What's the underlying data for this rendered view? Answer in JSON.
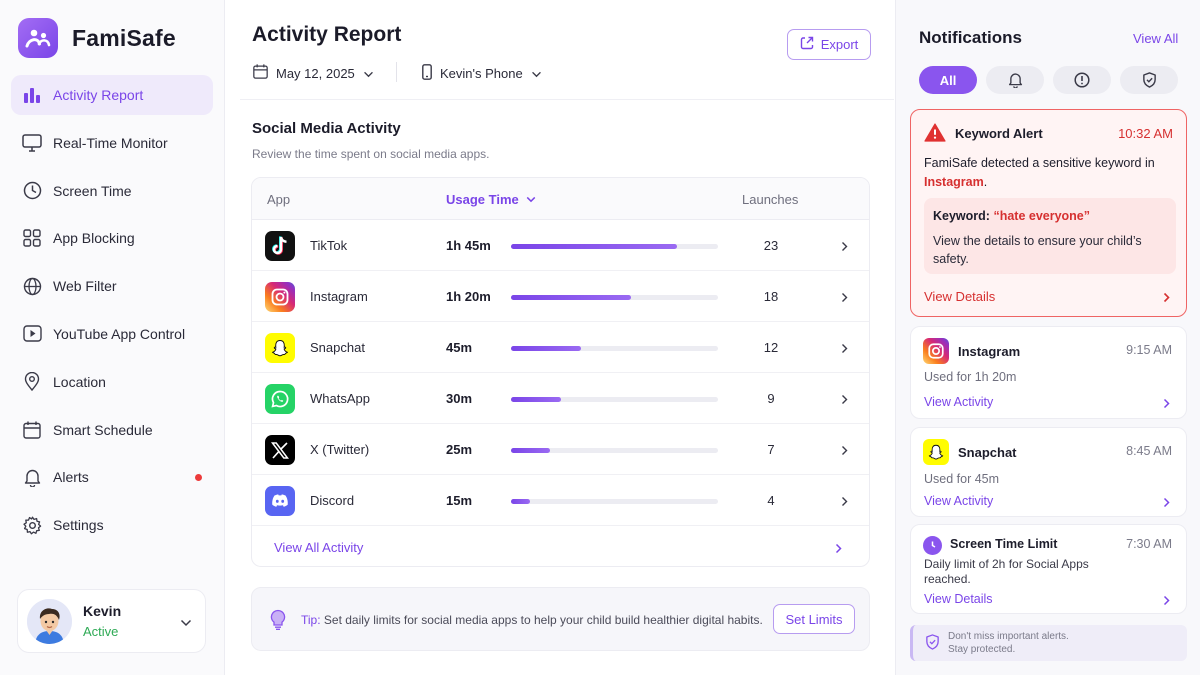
{
  "app": {
    "name": "FamiSafe"
  },
  "sidebar": {
    "items": [
      {
        "label": "Activity Report",
        "icon": "bar-chart-icon",
        "active": true
      },
      {
        "label": "Real-Time Monitor",
        "icon": "monitor-icon"
      },
      {
        "label": "Screen Time",
        "icon": "clock-icon"
      },
      {
        "label": "App Blocking",
        "icon": "apps-grid-icon"
      },
      {
        "label": "Web Filter",
        "icon": "globe-icon"
      },
      {
        "label": "YouTube App Control",
        "icon": "play-icon"
      },
      {
        "label": "Location",
        "icon": "location-pin-icon"
      },
      {
        "label": "Smart Schedule",
        "icon": "calendar-icon"
      },
      {
        "label": "Alerts",
        "icon": "bell-icon",
        "has_dot": true
      },
      {
        "label": "Settings",
        "icon": "gear-icon"
      }
    ],
    "user": {
      "name": "Kevin",
      "status": "Active"
    }
  },
  "main": {
    "title": "Activity Report",
    "date_filter": "May 12, 2025",
    "device_filter": "Kevin's Phone",
    "export_label": "Export",
    "section_title": "Social Media Activity",
    "section_subtitle": "Review the time spent on social media apps.",
    "table": {
      "col_app": "App",
      "col_usage": "Usage Time",
      "col_launches": "Launches",
      "rows": [
        {
          "app": "TikTok",
          "usage": "1h 45m",
          "usage_fraction": 0.8,
          "launches": "23"
        },
        {
          "app": "Instagram",
          "usage": "1h 20m",
          "usage_fraction": 0.58,
          "launches": "18"
        },
        {
          "app": "Snapchat",
          "usage": "45m",
          "usage_fraction": 0.34,
          "launches": "12"
        },
        {
          "app": "WhatsApp",
          "usage": "30m",
          "usage_fraction": 0.24,
          "launches": "9"
        },
        {
          "app": "X (Twitter)",
          "usage": "25m",
          "usage_fraction": 0.19,
          "launches": "7"
        },
        {
          "app": "Discord",
          "usage": "15m",
          "usage_fraction": 0.09,
          "launches": "4"
        }
      ],
      "view_all": "View All Activity"
    },
    "tip": {
      "key": "Tip:",
      "text": "Set daily limits for social media apps to help your child build healthier digital habits.",
      "button": "Set Limits"
    }
  },
  "notifications": {
    "title": "Notifications",
    "view_all": "View All",
    "filter_all": "All",
    "alert": {
      "title": "Keyword Alert",
      "time": "10:32 AM",
      "message_prefix": "FamiSafe detected a sensitive keyword in ",
      "message_app": "Instagram",
      "message_suffix": ".",
      "keyword_label": "Keyword:",
      "keyword_value": "“hate everyone”",
      "keyword_desc": "View the details to ensure your child’s safety.",
      "link": "View Details",
      "accent": "#d63030"
    },
    "items": [
      {
        "title": "Instagram",
        "time": "9:15 AM",
        "body": "Used for 1h 20m",
        "link": "View Activity"
      },
      {
        "title": "Snapchat",
        "time": "8:45 AM",
        "body": "Used for 45m",
        "link": "View Activity"
      },
      {
        "title": "Screen Time Limit",
        "time": "7:30 AM",
        "body": "Daily limit of 2h for Social Apps reached.",
        "link": "View Details"
      }
    ],
    "footer_line1": "Don't miss important alerts.",
    "footer_line2": "Stay protected."
  },
  "colors": {
    "accent": "#7a45e8",
    "alert": "#d63030",
    "active_status": "#2eaa55"
  }
}
